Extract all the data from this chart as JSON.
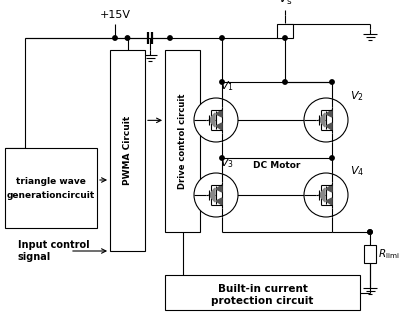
{
  "bg_color": "#ffffff",
  "line_color": "#000000",
  "v15_label": "+15V",
  "vs_label": "V_s",
  "v1_label": "V_1",
  "v2_label": "V_2",
  "v3_label": "V_3",
  "v4_label": "V_4",
  "rlimit_label": "R_{limit}",
  "dcmotor_label": "DC Motor",
  "box1_line1": "triangle wave",
  "box1_line2": "generationcircuit",
  "box2_label": "PWMA Circuit",
  "box3_label": "Drive control circuit",
  "box4_line1": "Built-in current",
  "box4_line2": "protection circuit",
  "input_line1": "Input control",
  "input_line2": "signal"
}
